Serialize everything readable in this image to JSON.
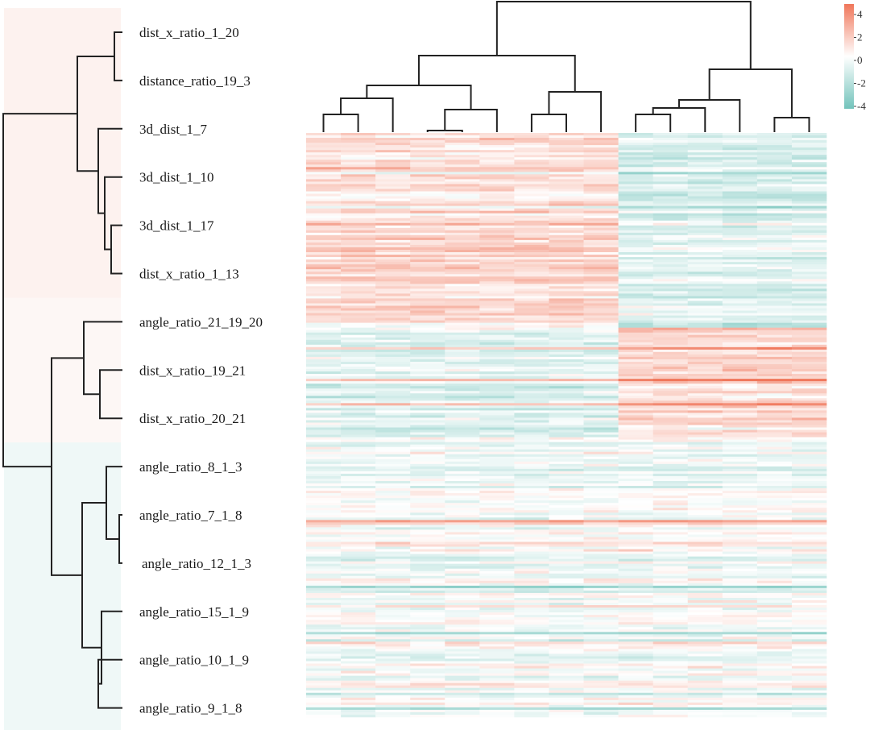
{
  "chart_data": {
    "type": "heatmap",
    "title": "",
    "xlabel": "",
    "ylabel": "",
    "row_labels": [
      "dist_x_ratio_1_20",
      "distance_ratio_19_3",
      "3d_dist_1_7",
      "3d_dist_1_10",
      "3d_dist_1_17",
      "dist_x_ratio_1_13",
      "angle_ratio_21_19_20",
      "dist_x_ratio_19_21",
      "dist_x_ratio_20_21",
      "angle_ratio_8_1_3",
      "angle_ratio_7_1_8",
      "angle_ratio_12_1_3",
      "angle_ratio_15_1_9",
      "angle_ratio_10_1_9",
      "angle_ratio_9_1_8"
    ],
    "row_groups": [
      {
        "name": "group-positive-top",
        "rows": [
          0,
          1,
          2,
          3,
          4,
          5
        ],
        "tint": "#fbe3dc"
      },
      {
        "name": "group-mixed-middle",
        "rows": [
          6,
          7,
          8
        ],
        "tint": "#fbeee9"
      },
      {
        "name": "group-negative-bottom",
        "rows": [
          9,
          10,
          11,
          12,
          13,
          14
        ],
        "tint": "#dcefee"
      }
    ],
    "column_count": 15,
    "column_clusters": [
      {
        "name": "left-cluster",
        "columns": [
          0,
          1,
          2,
          3,
          4,
          5,
          6,
          7,
          8
        ]
      },
      {
        "name": "right-cluster",
        "columns": [
          9,
          10,
          11,
          12,
          13,
          14
        ]
      }
    ],
    "band_profile": [
      {
        "band": "top",
        "left_cluster_mean": 1.0,
        "right_cluster_mean": -1.2
      },
      {
        "band": "middle",
        "left_cluster_mean": -1.0,
        "right_cluster_mean": 1.2
      },
      {
        "band": "bottom",
        "left_cluster_mean": -0.4,
        "right_cluster_mean": -0.3
      }
    ],
    "row_dendrogram": {
      "merges": [
        {
          "a": 4,
          "b": 5
        },
        {
          "a": 3,
          "b": "m0"
        },
        {
          "a": 2,
          "b": "m1"
        },
        {
          "a": 0,
          "b": 1
        },
        {
          "a": "m3",
          "b": "m2"
        },
        {
          "a": 7,
          "b": 8
        },
        {
          "a": 6,
          "b": "m5"
        },
        {
          "a": 10,
          "b": 11
        },
        {
          "a": 9,
          "b": "m7"
        },
        {
          "a": 13,
          "b": 14
        },
        {
          "a": 12,
          "b": "m9"
        },
        {
          "a": "m8",
          "b": "m10"
        },
        {
          "a": "m6",
          "b": "m11"
        },
        {
          "a": "m4",
          "b": "m12"
        }
      ]
    },
    "column_dendrogram": {
      "merges": [
        {
          "a": 3,
          "b": 4
        },
        {
          "a": 0,
          "b": 1
        },
        {
          "a": "m1",
          "b": 2
        },
        {
          "a": "m0",
          "b": 5
        },
        {
          "a": 6,
          "b": 7
        },
        {
          "a": "m2",
          "b": "m3"
        },
        {
          "a": "m4",
          "b": 8
        },
        {
          "a": "m5",
          "b": "m6"
        },
        {
          "a": 9,
          "b": 10
        },
        {
          "a": "m8",
          "b": 11
        },
        {
          "a": "m9",
          "b": 12
        },
        {
          "a": 13,
          "b": 14
        },
        {
          "a": "m10",
          "b": "m11"
        },
        {
          "a": "m7",
          "b": "m12"
        }
      ]
    },
    "legend": {
      "type": "colorbar",
      "placement": "top-right",
      "ticks": [
        "4",
        "2",
        "0",
        "-2",
        "-4"
      ],
      "range": [
        -4,
        4
      ],
      "colors": {
        "high": "#f0765a",
        "mid": "#ffffff",
        "low": "#72c3bb"
      }
    },
    "colormap": {
      "high": "#f0765a",
      "mid": "#ffffff",
      "low": "#72c3bb"
    }
  }
}
